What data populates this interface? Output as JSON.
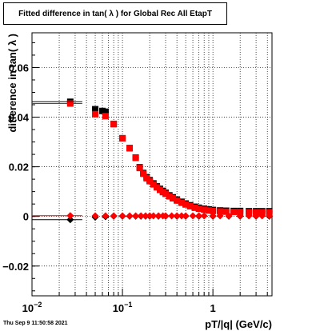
{
  "title": "Fitted difference in tan( λ ) for Global Rec All EtapT",
  "footer": "Thu Sep  9 11:50:58 2021",
  "chart_data": {
    "type": "scatter",
    "xlabel": "pT/|q| (GeV/c)",
    "ylabel": "difference in tan( λ )",
    "xscale": "log",
    "xlim": [
      0.01,
      4.5
    ],
    "ylim": [
      -0.032,
      0.074
    ],
    "grid": true,
    "x_ticks": [
      {
        "v": 0.01,
        "label": "10",
        "exp": "−2"
      },
      {
        "v": 0.1,
        "label": "10",
        "exp": "−1"
      },
      {
        "v": 1,
        "label": "1",
        "exp": ""
      }
    ],
    "y_ticks": [
      {
        "v": -0.02,
        "label": "−0.02"
      },
      {
        "v": 0,
        "label": "0"
      },
      {
        "v": 0.02,
        "label": "0.02"
      },
      {
        "v": 0.04,
        "label": "0.04"
      },
      {
        "v": 0.06,
        "label": "0.06"
      }
    ],
    "series": [
      {
        "color": "#000000",
        "marker": "square",
        "points": [
          [
            0.0265,
            0.0462
          ],
          [
            0.05,
            0.0432
          ],
          [
            0.06,
            0.0425
          ],
          [
            0.065,
            0.0422
          ],
          [
            0.08,
            0.0372
          ],
          [
            0.1,
            0.0315
          ],
          [
            0.12,
            0.0275
          ],
          [
            0.14,
            0.0237
          ],
          [
            0.155,
            0.0198
          ],
          [
            0.17,
            0.0175
          ],
          [
            0.185,
            0.0158
          ],
          [
            0.2,
            0.0146
          ],
          [
            0.22,
            0.0133
          ],
          [
            0.24,
            0.0121
          ],
          [
            0.26,
            0.0111
          ],
          [
            0.28,
            0.0103
          ],
          [
            0.3,
            0.0095
          ],
          [
            0.33,
            0.0085
          ],
          [
            0.36,
            0.0077
          ],
          [
            0.4,
            0.0068
          ],
          [
            0.45,
            0.0059
          ],
          [
            0.5,
            0.0052
          ],
          [
            0.56,
            0.0045
          ],
          [
            0.63,
            0.0039
          ],
          [
            0.7,
            0.0035
          ],
          [
            0.8,
            0.0031
          ],
          [
            0.9,
            0.0028
          ],
          [
            1.0,
            0.0026
          ],
          [
            1.2,
            0.0024
          ],
          [
            1.4,
            0.0023
          ],
          [
            1.7,
            0.0022
          ],
          [
            2.0,
            0.0022
          ],
          [
            2.5,
            0.0021
          ],
          [
            3.0,
            0.0021
          ],
          [
            3.5,
            0.0021
          ],
          [
            4.2,
            0.0021
          ]
        ]
      },
      {
        "color": "#000000",
        "marker": "diamond",
        "points": [
          [
            0.0265,
            -0.0013
          ],
          [
            0.05,
            -0.0003
          ],
          [
            0.065,
            -0.0001
          ],
          [
            0.08,
            0.0001
          ],
          [
            0.1,
            0.0001
          ],
          [
            0.12,
            0.0001
          ],
          [
            0.14,
            0.0001
          ],
          [
            0.16,
            0.0001
          ],
          [
            0.18,
            0.0001
          ],
          [
            0.2,
            0.0001
          ],
          [
            0.25,
            0.0001
          ],
          [
            0.3,
            0.0001
          ],
          [
            0.4,
            0.0001
          ],
          [
            0.5,
            0.0001
          ],
          [
            0.7,
            0.0001
          ],
          [
            1.0,
            0.0001
          ],
          [
            1.5,
            0.0001
          ],
          [
            2.0,
            0.0001
          ],
          [
            3.0,
            0.0001
          ],
          [
            4.2,
            0.0001
          ]
        ]
      },
      {
        "color": "#ff0000",
        "marker": "square",
        "points": [
          [
            0.0265,
            0.0455
          ],
          [
            0.05,
            0.0412
          ],
          [
            0.065,
            0.0404
          ],
          [
            0.08,
            0.0373
          ],
          [
            0.1,
            0.0315
          ],
          [
            0.12,
            0.0276
          ],
          [
            0.14,
            0.0236
          ],
          [
            0.155,
            0.0195
          ],
          [
            0.17,
            0.0172
          ],
          [
            0.185,
            0.0154
          ],
          [
            0.2,
            0.0142
          ],
          [
            0.22,
            0.0129
          ],
          [
            0.24,
            0.0117
          ],
          [
            0.26,
            0.0107
          ],
          [
            0.28,
            0.0098
          ],
          [
            0.3,
            0.0091
          ],
          [
            0.33,
            0.0081
          ],
          [
            0.36,
            0.0073
          ],
          [
            0.4,
            0.0064
          ],
          [
            0.45,
            0.0055
          ],
          [
            0.5,
            0.0048
          ],
          [
            0.56,
            0.0041
          ],
          [
            0.63,
            0.0035
          ],
          [
            0.7,
            0.0031
          ],
          [
            0.8,
            0.0027
          ],
          [
            0.9,
            0.0024
          ],
          [
            1.0,
            0.0022
          ],
          [
            1.2,
            0.002
          ],
          [
            1.4,
            0.0019
          ],
          [
            1.7,
            0.0018
          ],
          [
            2.0,
            0.0018
          ],
          [
            2.5,
            0.0017
          ],
          [
            3.0,
            0.0017
          ],
          [
            3.5,
            0.0017
          ],
          [
            4.2,
            0.0017
          ]
        ]
      },
      {
        "color": "#ff0000",
        "marker": "diamond",
        "points": [
          [
            0.0265,
            0.0003
          ],
          [
            0.05,
            0.0002
          ],
          [
            0.065,
            0.0002
          ],
          [
            0.08,
            0.0002
          ],
          [
            0.1,
            0.0002
          ],
          [
            0.12,
            0.0002
          ],
          [
            0.14,
            0.0002
          ],
          [
            0.16,
            0.0002
          ],
          [
            0.18,
            0.0002
          ],
          [
            0.2,
            0.0002
          ],
          [
            0.22,
            0.0002
          ],
          [
            0.25,
            0.0002
          ],
          [
            0.28,
            0.0002
          ],
          [
            0.3,
            0.0002
          ],
          [
            0.35,
            0.0002
          ],
          [
            0.4,
            0.0002
          ],
          [
            0.45,
            0.0002
          ],
          [
            0.5,
            0.0002
          ],
          [
            0.6,
            0.0002
          ],
          [
            0.7,
            0.0002
          ],
          [
            0.8,
            0.0002
          ],
          [
            1.0,
            0.0002
          ],
          [
            1.2,
            0.0002
          ],
          [
            1.5,
            0.0002
          ],
          [
            2.0,
            0.0002
          ],
          [
            2.5,
            0.0002
          ],
          [
            3.0,
            0.0002
          ],
          [
            3.5,
            0.0002
          ],
          [
            4.2,
            0.0002
          ]
        ]
      }
    ]
  }
}
